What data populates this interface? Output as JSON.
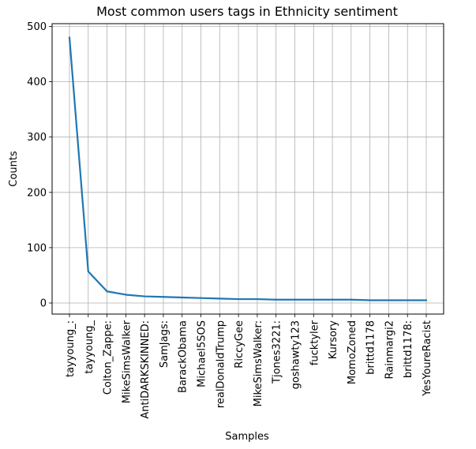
{
  "chart_data": {
    "type": "line",
    "title": "Most common users tags in Ethnicity sentiment",
    "xlabel": "Samples",
    "ylabel": "Counts",
    "ylim": [
      -20,
      505
    ],
    "yticks": [
      0,
      100,
      200,
      300,
      400,
      500
    ],
    "grid": true,
    "categories": [
      "tayyoung_:",
      "tayyoung_",
      "Colton_Zappe:",
      "MikeSimsWalker",
      "AntiDARKSKINNED:",
      "SamJags:",
      "BarackObama",
      "Michael5SOS",
      "realDonaldTrump",
      "RiccyGee",
      "MikeSimsWalker:",
      "Tjones3221:",
      "goshawty123",
      "fucktyler",
      "Kursory",
      "MomoZoned",
      "brittd1178",
      "Rainmargi2",
      "brittd1178:",
      "YesYoureRacist"
    ],
    "series": [
      {
        "color": "#1f77b4",
        "values": [
          480,
          57,
          21,
          15,
          12,
          11,
          10,
          9,
          8,
          7,
          7,
          6,
          6,
          6,
          6,
          6,
          5,
          5,
          5,
          5
        ]
      }
    ]
  }
}
